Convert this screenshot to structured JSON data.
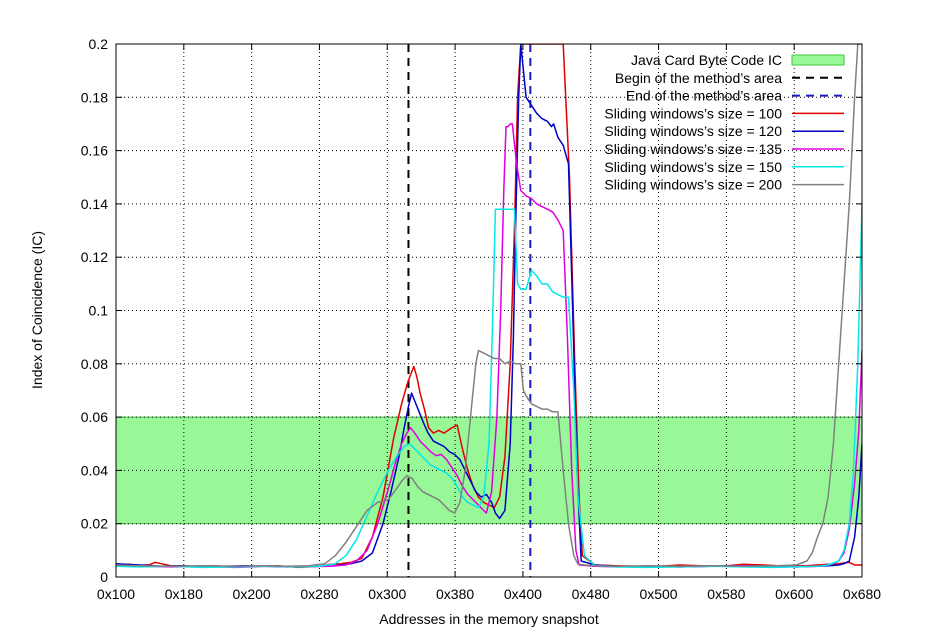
{
  "chart_data": {
    "type": "line",
    "xlabel": "Addresses in the memory snapshot",
    "ylabel": "Index of Coincidence (IC)",
    "xlim": [
      256,
      1664
    ],
    "ylim": [
      0,
      0.2
    ],
    "x_ticks": [
      {
        "value": 256,
        "label": "0x100"
      },
      {
        "value": 384,
        "label": "0x180"
      },
      {
        "value": 512,
        "label": "0x200"
      },
      {
        "value": 640,
        "label": "0x280"
      },
      {
        "value": 768,
        "label": "0x300"
      },
      {
        "value": 896,
        "label": "0x380"
      },
      {
        "value": 1024,
        "label": "0x400"
      },
      {
        "value": 1152,
        "label": "0x480"
      },
      {
        "value": 1280,
        "label": "0x500"
      },
      {
        "value": 1408,
        "label": "0x580"
      },
      {
        "value": 1536,
        "label": "0x600"
      },
      {
        "value": 1664,
        "label": "0x680"
      }
    ],
    "y_ticks": [
      {
        "value": 0,
        "label": "0"
      },
      {
        "value": 0.02,
        "label": "0.02"
      },
      {
        "value": 0.04,
        "label": "0.04"
      },
      {
        "value": 0.06,
        "label": "0.06"
      },
      {
        "value": 0.08,
        "label": "0.08"
      },
      {
        "value": 0.1,
        "label": "0.1"
      },
      {
        "value": 0.12,
        "label": "0.12"
      },
      {
        "value": 0.14,
        "label": "0.14"
      },
      {
        "value": 0.16,
        "label": "0.16"
      },
      {
        "value": 0.18,
        "label": "0.18"
      },
      {
        "value": 0.2,
        "label": "0.2"
      }
    ],
    "grid": true,
    "legend_position": "top-right",
    "band": {
      "name": "Java Card Byte Code IC",
      "y_min": 0.02,
      "y_max": 0.06,
      "color": "#98f898"
    },
    "vlines": [
      {
        "name": "Begin of the method’s area",
        "x": 808,
        "color": "#000000"
      },
      {
        "name": "End of the method’s area",
        "x": 1038,
        "color": "#1a1ac8"
      }
    ],
    "series": [
      {
        "name": "Sliding windows’s size = 100",
        "color": "#e00000",
        "x": [
          256,
          280,
          300,
          320,
          330,
          360,
          400,
          440,
          480,
          520,
          560,
          600,
          640,
          660,
          680,
          700,
          720,
          740,
          760,
          780,
          795,
          805,
          812,
          818,
          824,
          830,
          838,
          846,
          855,
          865,
          875,
          890,
          900,
          910,
          920,
          930,
          940,
          950,
          960,
          970,
          980,
          990,
          1000,
          1008,
          1014,
          1020,
          1030,
          1040,
          1050,
          1060,
          1070,
          1080,
          1090,
          1100,
          1112,
          1122,
          1130,
          1136,
          1160,
          1200,
          1240,
          1280,
          1320,
          1360,
          1400,
          1440,
          1480,
          1520,
          1560,
          1580,
          1600,
          1620,
          1640,
          1650,
          1664
        ],
        "y": [
          0.0045,
          0.0048,
          0.0044,
          0.0046,
          0.0055,
          0.0042,
          0.004,
          0.0042,
          0.0038,
          0.004,
          0.0042,
          0.0036,
          0.004,
          0.0048,
          0.005,
          0.0055,
          0.007,
          0.015,
          0.03,
          0.052,
          0.065,
          0.072,
          0.076,
          0.079,
          0.075,
          0.069,
          0.063,
          0.056,
          0.054,
          0.055,
          0.054,
          0.056,
          0.057,
          0.048,
          0.04,
          0.034,
          0.03,
          0.028,
          0.027,
          0.026,
          0.03,
          0.045,
          0.08,
          0.13,
          0.18,
          0.2,
          0.2,
          0.2,
          0.2,
          0.2,
          0.2,
          0.2,
          0.2,
          0.2,
          0.15,
          0.08,
          0.03,
          0.008,
          0.0045,
          0.0042,
          0.004,
          0.004,
          0.0045,
          0.0042,
          0.004,
          0.0048,
          0.0045,
          0.004,
          0.0042,
          0.0045,
          0.0048,
          0.005,
          0.0055,
          0.0045,
          0.0045
        ]
      },
      {
        "name": "Sliding windows’s size = 120",
        "color": "#0000c8",
        "x": [
          256,
          300,
          340,
          380,
          420,
          460,
          500,
          540,
          580,
          620,
          660,
          680,
          700,
          720,
          740,
          760,
          775,
          790,
          800,
          808,
          814,
          820,
          828,
          836,
          845,
          855,
          865,
          875,
          885,
          895,
          905,
          915,
          925,
          935,
          945,
          955,
          965,
          972,
          980,
          990,
          1000,
          1006,
          1010,
          1016,
          1020,
          1030,
          1040,
          1050,
          1060,
          1070,
          1078,
          1082,
          1090,
          1100,
          1110,
          1118,
          1126,
          1134,
          1160,
          1200,
          1260,
          1320,
          1380,
          1440,
          1500,
          1540,
          1580,
          1600,
          1620,
          1630,
          1640,
          1650,
          1658,
          1664
        ],
        "y": [
          0.005,
          0.0045,
          0.004,
          0.0042,
          0.0038,
          0.004,
          0.0042,
          0.004,
          0.0038,
          0.004,
          0.004,
          0.0045,
          0.005,
          0.006,
          0.009,
          0.02,
          0.032,
          0.045,
          0.056,
          0.064,
          0.069,
          0.066,
          0.062,
          0.058,
          0.054,
          0.051,
          0.05,
          0.049,
          0.047,
          0.046,
          0.044,
          0.04,
          0.036,
          0.032,
          0.03,
          0.031,
          0.028,
          0.024,
          0.022,
          0.025,
          0.05,
          0.09,
          0.13,
          0.18,
          0.2,
          0.18,
          0.177,
          0.174,
          0.172,
          0.171,
          0.169,
          0.17,
          0.165,
          0.162,
          0.155,
          0.1,
          0.04,
          0.006,
          0.0045,
          0.004,
          0.004,
          0.0038,
          0.004,
          0.0042,
          0.004,
          0.0038,
          0.004,
          0.0042,
          0.0045,
          0.005,
          0.006,
          0.015,
          0.03,
          0.05
        ]
      },
      {
        "name": "Sliding windows’s size = 135",
        "color": "#e000e0",
        "x": [
          256,
          300,
          360,
          420,
          480,
          540,
          600,
          660,
          690,
          710,
          730,
          750,
          770,
          785,
          795,
          805,
          812,
          820,
          830,
          840,
          850,
          860,
          870,
          880,
          890,
          900,
          910,
          920,
          930,
          940,
          950,
          955,
          965,
          975,
          982,
          988,
          992,
          996,
          1000,
          1004,
          1012,
          1020,
          1030,
          1040,
          1050,
          1060,
          1070,
          1080,
          1090,
          1100,
          1108,
          1116,
          1124,
          1130,
          1160,
          1200,
          1260,
          1320,
          1380,
          1440,
          1500,
          1540,
          1580,
          1600,
          1610,
          1620,
          1630,
          1640,
          1650,
          1658,
          1664
        ],
        "y": [
          0.0042,
          0.004,
          0.0038,
          0.004,
          0.0036,
          0.004,
          0.0038,
          0.004,
          0.0045,
          0.006,
          0.01,
          0.02,
          0.033,
          0.044,
          0.05,
          0.054,
          0.056,
          0.054,
          0.051,
          0.049,
          0.047,
          0.0455,
          0.046,
          0.044,
          0.041,
          0.038,
          0.034,
          0.031,
          0.029,
          0.027,
          0.025,
          0.024,
          0.032,
          0.06,
          0.1,
          0.145,
          0.169,
          0.169,
          0.17,
          0.17,
          0.155,
          0.145,
          0.143,
          0.142,
          0.14,
          0.139,
          0.138,
          0.137,
          0.134,
          0.13,
          0.09,
          0.04,
          0.01,
          0.0045,
          0.004,
          0.0038,
          0.004,
          0.0038,
          0.004,
          0.0042,
          0.004,
          0.0038,
          0.004,
          0.0045,
          0.005,
          0.006,
          0.009,
          0.018,
          0.035,
          0.055,
          0.085
        ]
      },
      {
        "name": "Sliding windows’s size = 150",
        "color": "#00e8e8",
        "x": [
          256,
          300,
          360,
          420,
          480,
          540,
          600,
          640,
          670,
          690,
          710,
          730,
          750,
          770,
          785,
          800,
          810,
          820,
          830,
          840,
          850,
          860,
          870,
          880,
          890,
          900,
          910,
          920,
          930,
          940,
          950,
          960,
          966,
          972,
          980,
          1000,
          1008,
          1014,
          1020,
          1030,
          1040,
          1050,
          1060,
          1070,
          1080,
          1090,
          1100,
          1110,
          1120,
          1128,
          1140,
          1160,
          1200,
          1260,
          1320,
          1380,
          1440,
          1500,
          1540,
          1580,
          1600,
          1620,
          1630,
          1640,
          1648,
          1656,
          1664
        ],
        "y": [
          0.004,
          0.0038,
          0.004,
          0.0036,
          0.0038,
          0.004,
          0.0038,
          0.004,
          0.005,
          0.008,
          0.014,
          0.023,
          0.032,
          0.04,
          0.045,
          0.049,
          0.05,
          0.048,
          0.046,
          0.044,
          0.042,
          0.041,
          0.04,
          0.039,
          0.037,
          0.034,
          0.03,
          0.028,
          0.027,
          0.026,
          0.03,
          0.05,
          0.09,
          0.138,
          0.138,
          0.138,
          0.138,
          0.11,
          0.108,
          0.108,
          0.115,
          0.113,
          0.11,
          0.11,
          0.107,
          0.106,
          0.105,
          0.105,
          0.07,
          0.03,
          0.008,
          0.0042,
          0.0038,
          0.0036,
          0.0038,
          0.004,
          0.0038,
          0.0036,
          0.0038,
          0.004,
          0.0045,
          0.006,
          0.01,
          0.02,
          0.04,
          0.08,
          0.14
        ]
      },
      {
        "name": "Sliding windows’s size = 200",
        "color": "#808080",
        "x": [
          256,
          300,
          360,
          420,
          480,
          540,
          580,
          620,
          650,
          670,
          690,
          710,
          730,
          750,
          770,
          785,
          795,
          805,
          815,
          825,
          835,
          845,
          855,
          865,
          875,
          885,
          895,
          905,
          915,
          925,
          935,
          940,
          950,
          960,
          970,
          980,
          990,
          1000,
          1010,
          1020,
          1025,
          1030,
          1040,
          1050,
          1060,
          1070,
          1080,
          1090,
          1100,
          1110,
          1120,
          1128,
          1140,
          1160,
          1200,
          1260,
          1320,
          1380,
          1440,
          1500,
          1540,
          1560,
          1570,
          1580,
          1590,
          1600,
          1610,
          1620,
          1630,
          1640,
          1650,
          1656,
          1664
        ],
        "y": [
          0.0045,
          0.0042,
          0.004,
          0.0042,
          0.004,
          0.0042,
          0.004,
          0.0042,
          0.005,
          0.008,
          0.013,
          0.019,
          0.025,
          0.028,
          0.029,
          0.033,
          0.036,
          0.038,
          0.037,
          0.034,
          0.032,
          0.031,
          0.03,
          0.029,
          0.027,
          0.025,
          0.024,
          0.028,
          0.04,
          0.06,
          0.08,
          0.085,
          0.084,
          0.083,
          0.082,
          0.082,
          0.08,
          0.081,
          0.08,
          0.08,
          0.07,
          0.068,
          0.065,
          0.064,
          0.063,
          0.063,
          0.062,
          0.062,
          0.04,
          0.02,
          0.008,
          0.0048,
          0.0045,
          0.0042,
          0.004,
          0.0042,
          0.004,
          0.0042,
          0.004,
          0.0042,
          0.0045,
          0.006,
          0.009,
          0.015,
          0.02,
          0.03,
          0.05,
          0.08,
          0.11,
          0.14,
          0.18,
          0.2,
          0.2
        ]
      }
    ]
  }
}
